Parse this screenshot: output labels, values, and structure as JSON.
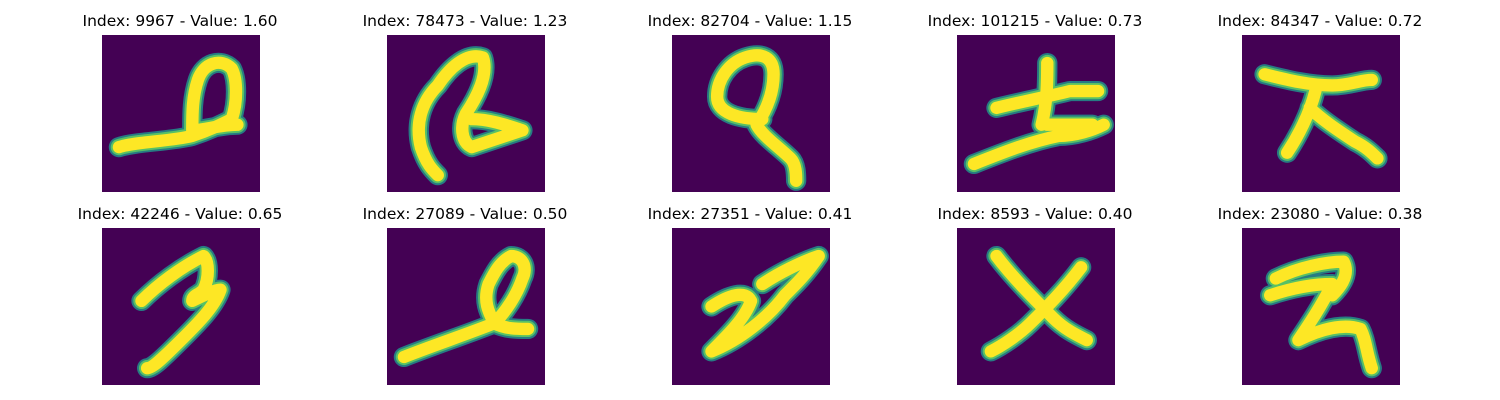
{
  "colors": {
    "background": "#440154",
    "stroke_edge": "#21918c",
    "stroke_mid": "#5ec962",
    "stroke_core": "#fde725"
  },
  "panels": [
    {
      "title": "Index: 9967 - Value: 1.60",
      "index": "9967",
      "value": "1.60"
    },
    {
      "title": "Index: 78473 - Value: 1.23",
      "index": "78473",
      "value": "1.23"
    },
    {
      "title": "Index: 82704 - Value: 1.15",
      "index": "82704",
      "value": "1.15"
    },
    {
      "title": "Index: 101215 - Value: 0.73",
      "index": "101215",
      "value": "0.73"
    },
    {
      "title": "Index: 84347 - Value: 0.72",
      "index": "84347",
      "value": "0.72"
    },
    {
      "title": "Index: 42246 - Value: 0.65",
      "index": "42246",
      "value": "0.65"
    },
    {
      "title": "Index: 27089 - Value: 0.50",
      "index": "27089",
      "value": "0.50"
    },
    {
      "title": "Index: 27351 - Value: 0.41",
      "index": "27351",
      "value": "0.41"
    },
    {
      "title": "Index: 8593 - Value: 0.40",
      "index": "8593",
      "value": "0.40"
    },
    {
      "title": "Index: 23080 - Value: 0.38",
      "index": "23080",
      "value": "0.38"
    }
  ]
}
